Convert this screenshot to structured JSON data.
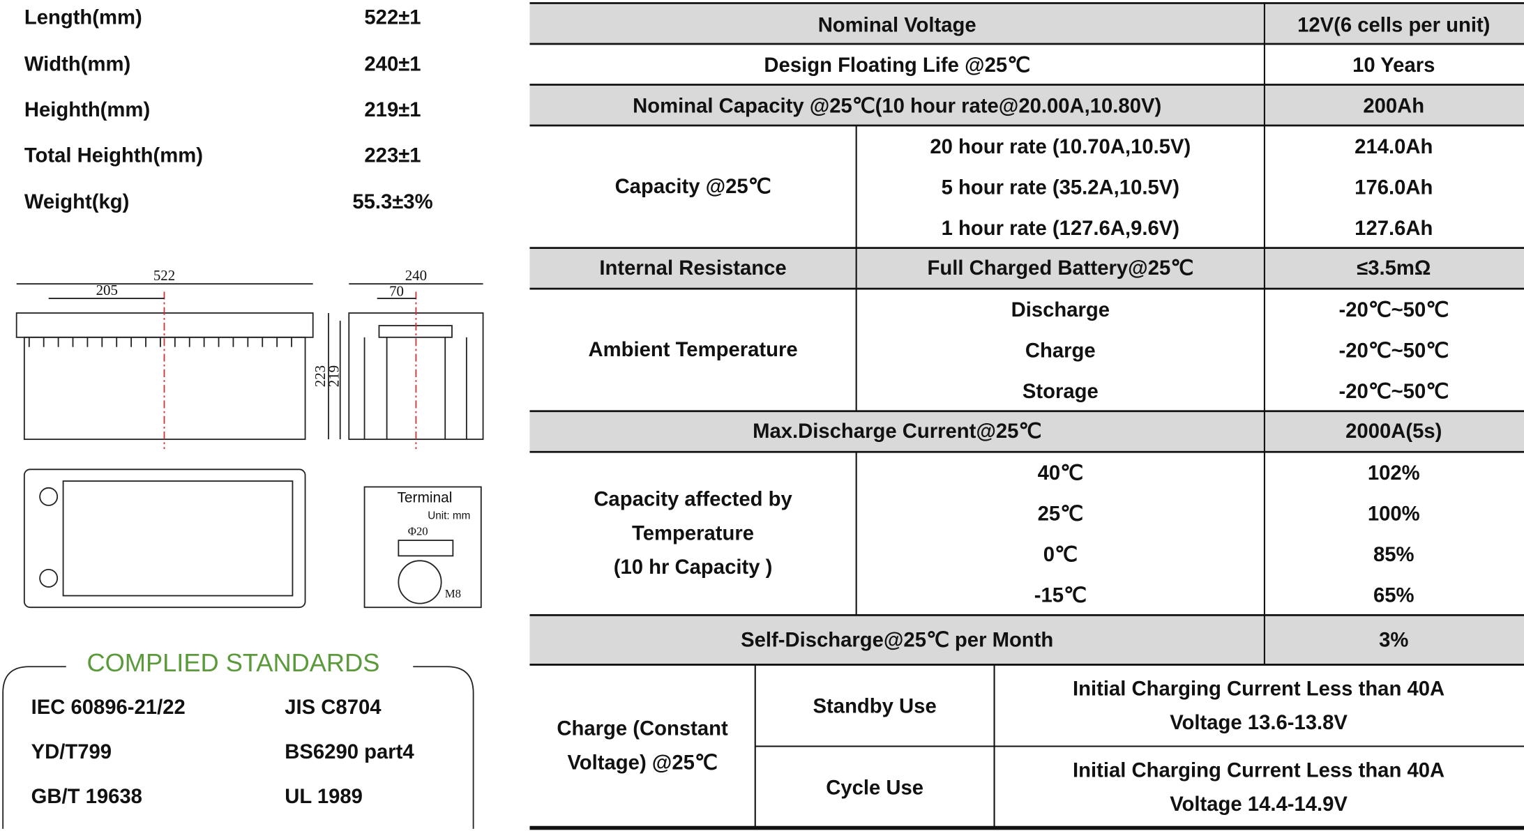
{
  "dimensions": [
    {
      "label": "Length(mm)",
      "value": "522±1"
    },
    {
      "label": "Width(mm)",
      "value": "240±1"
    },
    {
      "label": "Heighth(mm)",
      "value": "219±1"
    },
    {
      "label": "Total Heighth(mm)",
      "value": "223±1"
    },
    {
      "label": "Weight(kg)",
      "value": "55.3±3%"
    }
  ],
  "drawing": {
    "side_length": "522",
    "side_offset": "205",
    "side_height": "223",
    "side_height2": "219",
    "end_width": "240",
    "end_offset": "70",
    "terminal_title": "Terminal",
    "terminal_unit": "Unit: mm",
    "terminal_diameter": "Φ20",
    "terminal_thread": "M8"
  },
  "standards": {
    "title": "COMPLIED STANDARDS",
    "items": [
      "IEC 60896-21/22",
      "JIS C8704",
      "YD/T799",
      "BS6290 part4",
      "GB/T 19638",
      "UL 1989"
    ]
  },
  "specs": {
    "nominal_voltage": {
      "label": "Nominal Voltage",
      "value": "12V(6 cells per unit)"
    },
    "floating_life": {
      "label": "Design Floating Life @25℃",
      "value": "10 Years"
    },
    "nominal_capacity": {
      "label": "Nominal Capacity @25℃(10 hour rate@20.00A,10.80V)",
      "value": "200Ah"
    },
    "capacity": {
      "label": "Capacity @25℃",
      "rates": [
        {
          "condition": "20 hour rate (10.70A,10.5V)",
          "value": "214.0Ah"
        },
        {
          "condition": "5 hour rate (35.2A,10.5V)",
          "value": "176.0Ah"
        },
        {
          "condition": "1 hour rate (127.6A,9.6V)",
          "value": "127.6Ah"
        }
      ]
    },
    "internal_resistance": {
      "label": "Internal Resistance",
      "condition": "Full Charged Battery@25℃",
      "value": "≤3.5mΩ"
    },
    "ambient": {
      "label": "Ambient Temperature",
      "items": [
        {
          "mode": "Discharge",
          "range": "-20℃~50℃"
        },
        {
          "mode": "Charge",
          "range": "-20℃~50℃"
        },
        {
          "mode": "Storage",
          "range": "-20℃~50℃"
        }
      ]
    },
    "max_discharge": {
      "label": "Max.Discharge Current@25℃",
      "value": "2000A(5s)"
    },
    "temp_capacity": {
      "label_lines": [
        "Capacity affected by",
        "Temperature",
        "(10 hr Capacity )"
      ],
      "items": [
        {
          "temperature": "40℃",
          "value": "102%"
        },
        {
          "temperature": "25℃",
          "value": "100%"
        },
        {
          "temperature": "0℃",
          "value": "85%"
        },
        {
          "temperature": "-15℃",
          "value": "65%"
        }
      ]
    },
    "self_discharge": {
      "label": "Self-Discharge@25℃ per Month",
      "value": "3%"
    },
    "charge": {
      "label_lines": [
        "Charge (Constant",
        "Voltage) @25℃"
      ],
      "modes": [
        {
          "name": "Standby Use",
          "lines": [
            "Initial Charging Current Less than 40A",
            "Voltage 13.6-13.8V"
          ]
        },
        {
          "name": "Cycle Use",
          "lines": [
            "Initial Charging Current Less than 40A",
            "Voltage 14.4-14.9V"
          ]
        }
      ]
    }
  }
}
